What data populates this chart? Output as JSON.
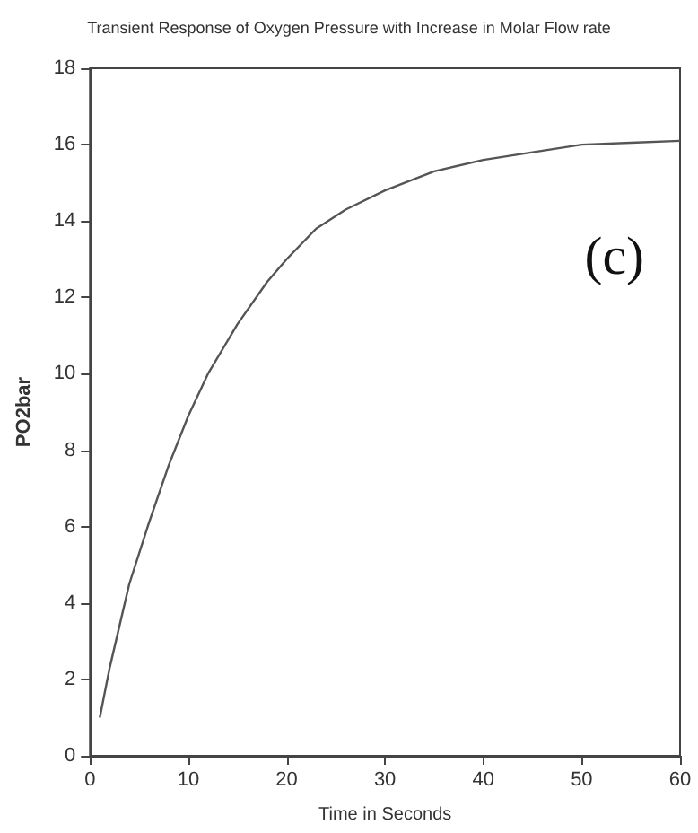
{
  "chart_data": {
    "type": "line",
    "title": "Transient Response of Oxygen Pressure with Increase in Molar Flow rate",
    "xlabel": "Time in Seconds",
    "ylabel": "PO2bar",
    "x": [
      1,
      2,
      4,
      6,
      8,
      10,
      12,
      15,
      18,
      20,
      23,
      26,
      30,
      35,
      40,
      45,
      50,
      55,
      60
    ],
    "series": [
      {
        "color": "#555555",
        "values": [
          1.0,
          2.3,
          4.5,
          6.1,
          7.6,
          8.9,
          10.0,
          11.3,
          12.4,
          13.0,
          13.8,
          14.3,
          14.8,
          15.3,
          15.6,
          15.8,
          16.0,
          16.05,
          16.1
        ]
      }
    ],
    "xlim": [
      0,
      60
    ],
    "xticks": [
      0,
      10,
      20,
      30,
      40,
      50,
      60
    ],
    "ylim": [
      0,
      18
    ],
    "yticks": [
      0,
      2,
      4,
      6,
      8,
      10,
      12,
      14,
      16,
      18
    ],
    "annotations": [
      "(c)"
    ],
    "grid": false,
    "marker": "none",
    "line_style": "solid"
  }
}
